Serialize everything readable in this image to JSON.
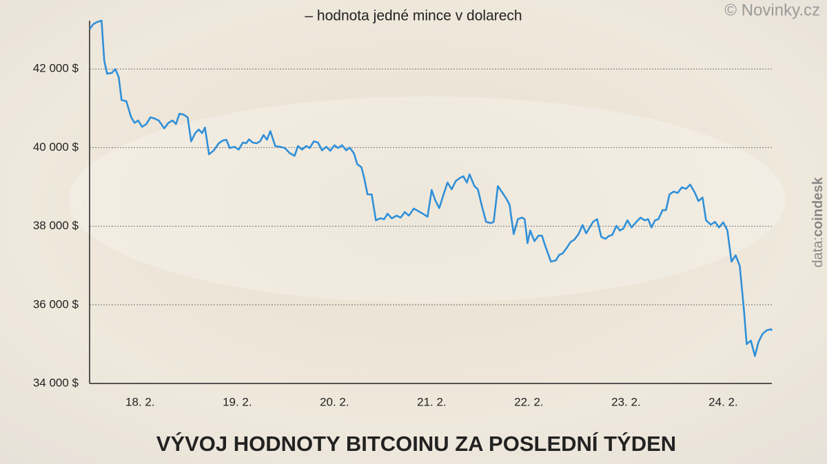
{
  "chart_data": {
    "type": "line",
    "title": "VÝVOJ HODNOTY BITCOINU ZA POSLEDNÍ TÝDEN",
    "subtitle": "– hodnota jedné mince v dolarech",
    "credit": "© Novinky.cz",
    "source_label": "data:",
    "source": "coindesk",
    "color": "#2f8fd8",
    "grid": true,
    "xlim": [
      17.48,
      24.55
    ],
    "ylim": [
      34000,
      43230
    ],
    "xticks": [
      {
        "value": 18,
        "label": "18. 2."
      },
      {
        "value": 19,
        "label": "19. 2."
      },
      {
        "value": 20,
        "label": "20. 2."
      },
      {
        "value": 21,
        "label": "21. 2."
      },
      {
        "value": 22,
        "label": "22. 2."
      },
      {
        "value": 23,
        "label": "23. 2."
      },
      {
        "value": 24,
        "label": "24. 2."
      }
    ],
    "yticks": [
      {
        "value": 34000,
        "label": "34 000 $"
      },
      {
        "value": 36000,
        "label": "36 000 $"
      },
      {
        "value": 38000,
        "label": "38 000 $"
      },
      {
        "value": 40000,
        "label": "40 000 $"
      },
      {
        "value": 42000,
        "label": "42 000 $"
      }
    ],
    "x": [
      17.482,
      17.518,
      17.553,
      17.603,
      17.631,
      17.66,
      17.709,
      17.745,
      17.78,
      17.809,
      17.858,
      17.908,
      17.943,
      17.979,
      18.021,
      18.064,
      18.106,
      18.149,
      18.191,
      18.248,
      18.291,
      18.333,
      18.369,
      18.404,
      18.447,
      18.489,
      18.525,
      18.567,
      18.603,
      18.638,
      18.667,
      18.709,
      18.759,
      18.809,
      18.851,
      18.887,
      18.922,
      18.972,
      19.014,
      19.057,
      19.092,
      19.121,
      19.156,
      19.199,
      19.234,
      19.27,
      19.305,
      19.34,
      19.39,
      19.44,
      19.489,
      19.539,
      19.589,
      19.624,
      19.667,
      19.709,
      19.745,
      19.787,
      19.83,
      19.872,
      19.915,
      19.957,
      20.0,
      20.035,
      20.078,
      20.121,
      20.156,
      20.199,
      20.234,
      20.277,
      20.305,
      20.34,
      20.383,
      20.426,
      20.468,
      20.511,
      20.546,
      20.589,
      20.638,
      20.681,
      20.723,
      20.766,
      20.816,
      20.858,
      20.908,
      20.957,
      21.0,
      21.035,
      21.078,
      21.121,
      21.163,
      21.206,
      21.248,
      21.291,
      21.326,
      21.362,
      21.39,
      21.44,
      21.475,
      21.518,
      21.56,
      21.61,
      21.638,
      21.681,
      21.723,
      21.766,
      21.801,
      21.844,
      21.887,
      21.929,
      21.957,
      21.986,
      22.014,
      22.057,
      22.099,
      22.135,
      22.163,
      22.227,
      22.277,
      22.312,
      22.348,
      22.39,
      22.426,
      22.468,
      22.511,
      22.553,
      22.589,
      22.624,
      22.66,
      22.702,
      22.745,
      22.787,
      22.823,
      22.858,
      22.901,
      22.936,
      22.972,
      23.014,
      23.057,
      23.106,
      23.149,
      23.191,
      23.227,
      23.262,
      23.298,
      23.333,
      23.376,
      23.411,
      23.447,
      23.489,
      23.532,
      23.574,
      23.617,
      23.66,
      23.709,
      23.745,
      23.787,
      23.823,
      23.872,
      23.915,
      23.957,
      24.0,
      24.043,
      24.085,
      24.128,
      24.17,
      24.213,
      24.241,
      24.284,
      24.326,
      24.362,
      24.404,
      24.447,
      24.489,
      24.504
    ],
    "values": [
      43020,
      43140,
      43190,
      43230,
      42210,
      41880,
      41900,
      42000,
      41790,
      41210,
      41180,
      40770,
      40630,
      40690,
      40530,
      40600,
      40770,
      40740,
      40690,
      40490,
      40630,
      40690,
      40600,
      40860,
      40840,
      40770,
      40160,
      40370,
      40460,
      40370,
      40510,
      39830,
      39930,
      40110,
      40180,
      40200,
      39990,
      40020,
      39950,
      40130,
      40110,
      40210,
      40130,
      40110,
      40160,
      40320,
      40200,
      40420,
      40040,
      40020,
      39990,
      39860,
      39790,
      40040,
      39950,
      40040,
      39990,
      40160,
      40130,
      39930,
      40020,
      39920,
      40060,
      39990,
      40060,
      39930,
      40000,
      39860,
      39580,
      39500,
      39230,
      38810,
      38810,
      38150,
      38200,
      38180,
      38320,
      38200,
      38270,
      38220,
      38360,
      38270,
      38450,
      38390,
      38320,
      38240,
      38920,
      38670,
      38460,
      38800,
      39110,
      38940,
      39150,
      39230,
      39270,
      39110,
      39320,
      39020,
      38940,
      38500,
      38110,
      38080,
      38110,
      39020,
      38870,
      38710,
      38550,
      37800,
      38180,
      38220,
      38180,
      37570,
      37890,
      37620,
      37760,
      37760,
      37540,
      37100,
      37130,
      37270,
      37310,
      37450,
      37590,
      37660,
      37800,
      38030,
      37820,
      37960,
      38110,
      38180,
      37730,
      37680,
      37750,
      37780,
      38010,
      37890,
      37940,
      38150,
      37970,
      38110,
      38220,
      38150,
      38180,
      37970,
      38150,
      38180,
      38410,
      38410,
      38810,
      38880,
      38850,
      38990,
      38950,
      39060,
      38850,
      38640,
      38730,
      38150,
      38040,
      38110,
      37970,
      38100,
      37890,
      37100,
      37260,
      36990,
      35870,
      35000,
      35090,
      34700,
      35050,
      35260,
      35350,
      35380,
      35350
    ]
  }
}
